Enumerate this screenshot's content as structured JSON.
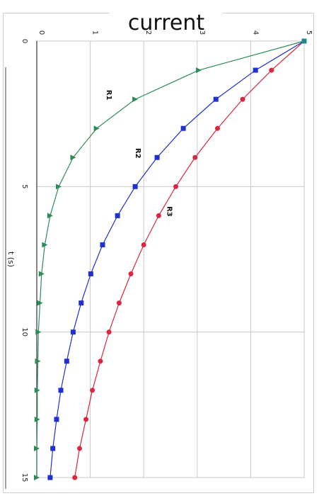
{
  "chart_data": {
    "type": "line",
    "title": "current",
    "xlabel": "t (s)",
    "ylabel": "",
    "xlim": [
      0,
      15
    ],
    "ylim": [
      0,
      5
    ],
    "x_ticks": [
      "0",
      "5",
      "10",
      "15"
    ],
    "y_ticks": [
      "0",
      "1",
      "2",
      "3",
      "4",
      "5"
    ],
    "grid": true,
    "orientation": "rotated-90-clockwise",
    "x": [
      0,
      1,
      2,
      3,
      4,
      5,
      6,
      7,
      8,
      9,
      10,
      11,
      12,
      13,
      14,
      15
    ],
    "series": [
      {
        "name": "R1",
        "color": "#2e8b57",
        "marker": "triangle",
        "values": [
          5,
          3.03,
          1.84,
          1.12,
          0.68,
          0.41,
          0.25,
          0.15,
          0.09,
          0.06,
          0.03,
          0.02,
          0.01,
          0.01,
          0.0,
          0.0
        ]
      },
      {
        "name": "R2",
        "color": "#1f2fd0",
        "marker": "square",
        "values": [
          5,
          4.09,
          3.35,
          2.74,
          2.25,
          1.84,
          1.51,
          1.23,
          1.01,
          0.83,
          0.68,
          0.56,
          0.45,
          0.37,
          0.3,
          0.25
        ]
      },
      {
        "name": "R3",
        "color": "#dc2640",
        "marker": "circle",
        "values": [
          5,
          4.39,
          3.85,
          3.38,
          2.96,
          2.6,
          2.28,
          2.0,
          1.76,
          1.54,
          1.35,
          1.19,
          1.04,
          0.92,
          0.8,
          0.71
        ]
      }
    ]
  }
}
